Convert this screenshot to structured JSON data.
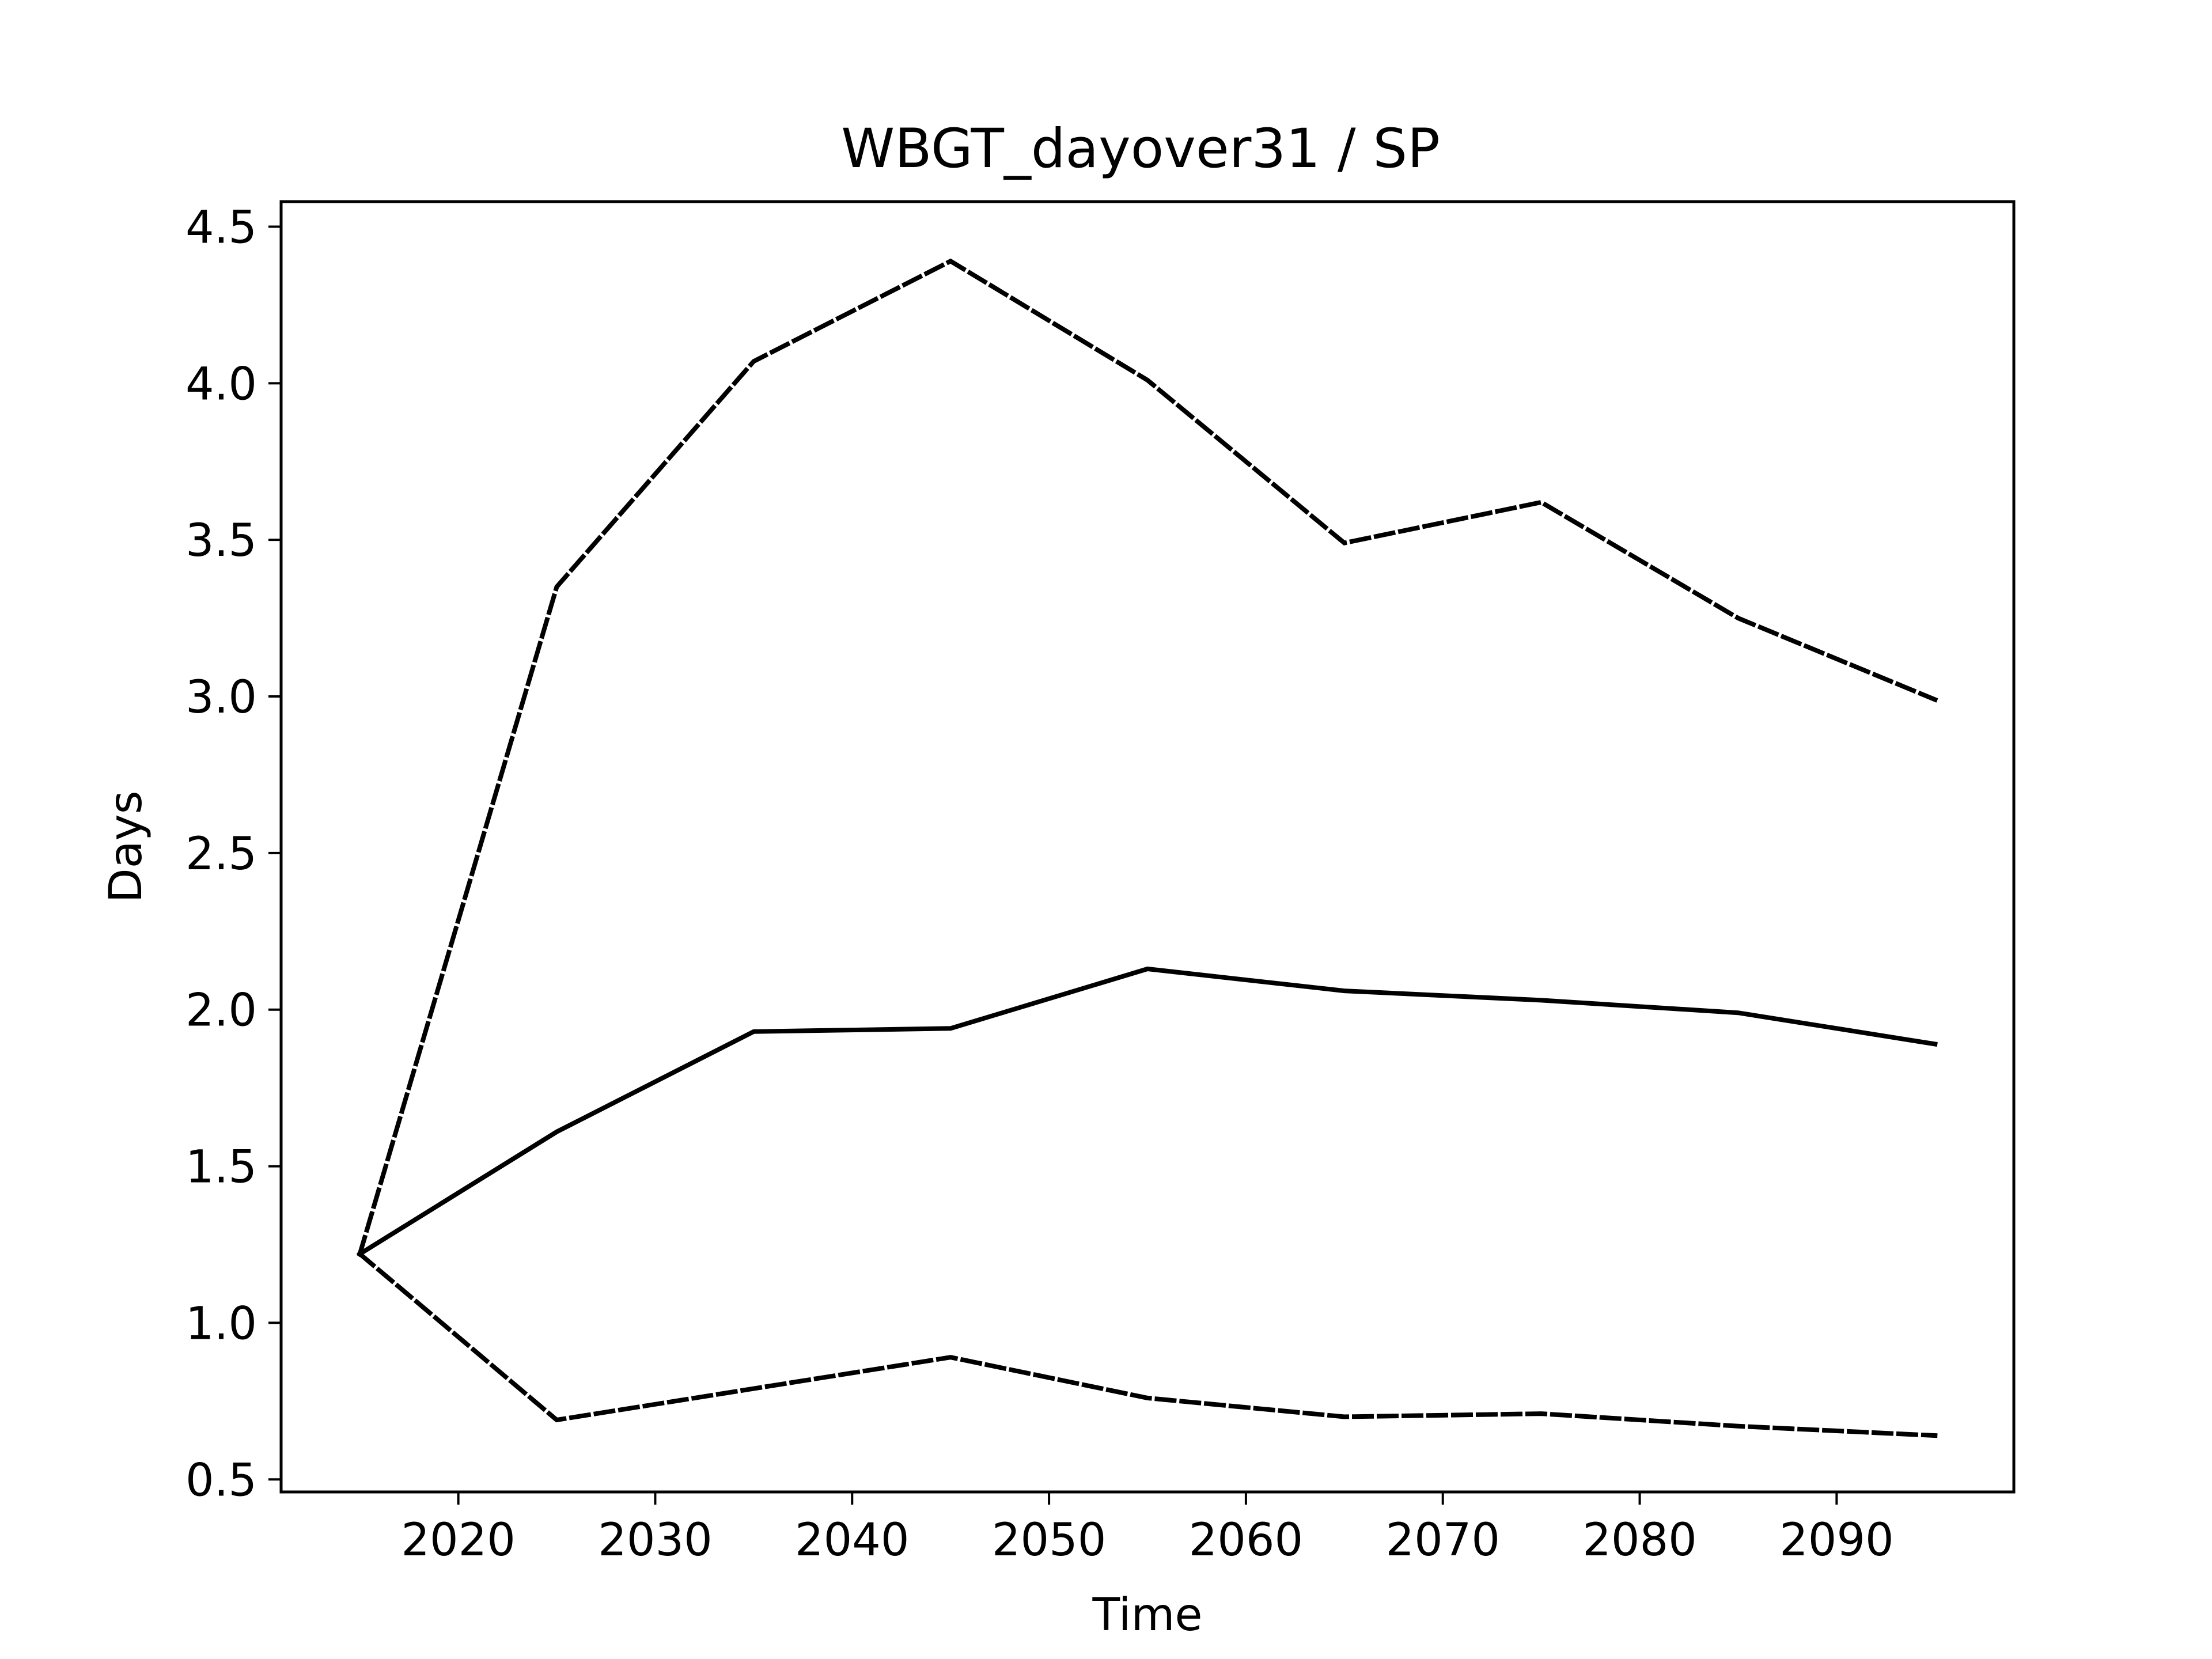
{
  "chart_data": {
    "type": "line",
    "title": "WBGT_dayover31 / SP",
    "xlabel": "Time",
    "ylabel": "Days",
    "x": [
      2015,
      2025,
      2035,
      2045,
      2055,
      2065,
      2075,
      2085,
      2095
    ],
    "xlim": [
      2011,
      2099
    ],
    "ylim": [
      0.46,
      4.58
    ],
    "xticks": [
      2020,
      2030,
      2040,
      2050,
      2060,
      2070,
      2080,
      2090
    ],
    "yticks": [
      0.5,
      1.0,
      1.5,
      2.0,
      2.5,
      3.0,
      3.5,
      4.0,
      4.5
    ],
    "grid": false,
    "legend": "none",
    "series": [
      {
        "style": "dashed",
        "color": "#000000",
        "values": [
          1.22,
          3.35,
          4.07,
          4.39,
          4.01,
          3.49,
          3.62,
          3.25,
          2.99
        ]
      },
      {
        "style": "solid",
        "color": "#000000",
        "values": [
          1.22,
          1.61,
          1.93,
          1.94,
          2.13,
          2.06,
          2.03,
          1.99,
          1.89
        ]
      },
      {
        "style": "dashed",
        "color": "#000000",
        "values": [
          1.22,
          0.69,
          0.79,
          0.89,
          0.76,
          0.7,
          0.71,
          0.67,
          0.64
        ]
      }
    ]
  }
}
